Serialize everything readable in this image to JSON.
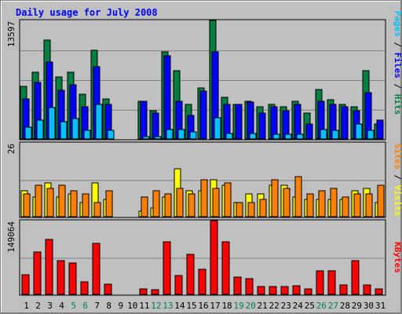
{
  "chart_data": {
    "type": "bar",
    "title": "Daily usage for July 2008",
    "categories": [
      "1",
      "2",
      "3",
      "4",
      "5",
      "6",
      "7",
      "8",
      "9",
      "10",
      "11",
      "12",
      "13",
      "14",
      "15",
      "16",
      "17",
      "18",
      "19",
      "20",
      "21",
      "22",
      "23",
      "24",
      "25",
      "26",
      "27",
      "28",
      "29",
      "30",
      "31"
    ],
    "weekend_days": [
      "5",
      "6",
      "12",
      "13",
      "19",
      "20",
      "26",
      "27"
    ],
    "panels": [
      {
        "id": "hits",
        "ymax_label": "13597",
        "ymax": 13597,
        "series": [
          {
            "name": "Hits",
            "color": "#008040",
            "values": [
              5995,
              7676,
              11310,
              7112,
              7676,
              5110,
              10162,
              4625,
              0,
              0,
              4331,
              3243,
              9995,
              7853,
              3942,
              5835,
              13597,
              4770,
              4005,
              4331,
              3685,
              3942,
              3685,
              4331,
              3005,
              5661,
              4476,
              4005,
              3685,
              7853,
              1708
            ]
          },
          {
            "name": "Files",
            "color": "#0000ff",
            "values": [
              4625,
              6528,
              8817,
              5581,
              6181,
              3685,
              8308,
              3942,
              0,
              0,
              4331,
              3005,
              9555,
              4331,
              2741,
              5455,
              9995,
              3942,
              3942,
              4196,
              3005,
              3685,
              3243,
              3942,
              1708,
              4331,
              4005,
              3685,
              3243,
              5321,
              2147
            ]
          },
          {
            "name": "Pages",
            "color": "#00c0ff",
            "values": [
              1330,
              2147,
              3612,
              2002,
              2327,
              993,
              4005,
              993,
              0,
              0,
              249,
              249,
              1061,
              1061,
              829,
              0,
              2447,
              662,
              0,
              662,
              0,
              525,
              525,
              525,
              0,
              1061,
              993,
              0,
              1708,
              993,
              0
            ]
          }
        ]
      },
      {
        "id": "visits",
        "ymax_label": "26",
        "ymax": 26,
        "series": [
          {
            "name": "Visits",
            "color": "#ffff00",
            "values": [
              9,
              7,
              12,
              7,
              8,
              5,
              12,
              6,
              0,
              0,
              2,
              3,
              7,
              17,
              9,
              9,
              13,
              11,
              5,
              8,
              8,
              11,
              11,
              7,
              6,
              6,
              6,
              6,
              9,
              10,
              5
            ]
          },
          {
            "name": "Sites",
            "color": "#ff8000",
            "values": [
              8,
              11,
              10,
              11,
              9,
              8,
              5,
              9,
              0,
              0,
              7,
              9,
              8,
              10,
              8,
              13,
              10,
              12,
              5,
              5,
              6,
              13,
              10,
              14,
              8,
              9,
              10,
              7,
              8,
              8,
              11
            ]
          }
        ]
      },
      {
        "id": "kbytes",
        "ymax_label": "149064",
        "ymax": 149064,
        "series": [
          {
            "name": "KBytes",
            "color": "#ff0000",
            "values": [
              38924,
              84920,
              111436,
              67968,
              64072,
              24904,
              103148,
              20268,
              0,
              0,
              11760,
              9412,
              106116,
              37376,
              80536,
              50160,
              149064,
              105592,
              35020,
              31180,
              16572,
              16572,
              16572,
              17152,
              10856,
              46964,
              46964,
              19336,
              67968,
              18384,
              10376
            ]
          }
        ]
      }
    ],
    "xlabel": "",
    "ylabel": ""
  }
}
